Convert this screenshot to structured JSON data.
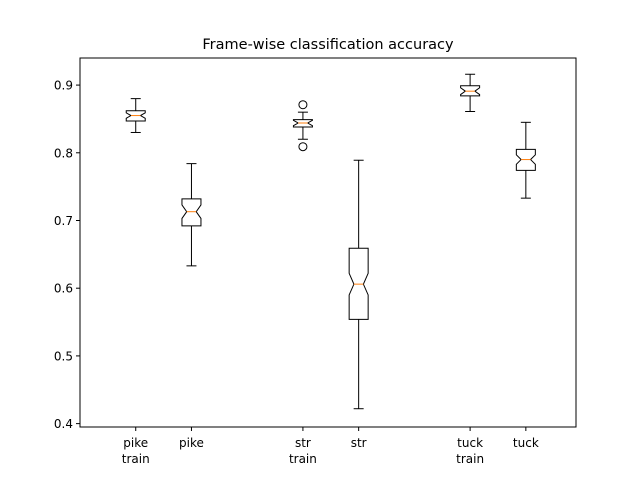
{
  "chart_data": {
    "type": "boxplot",
    "title": "Frame-wise classification accuracy",
    "xlabel": "",
    "ylabel": "",
    "ylim": [
      0.395,
      0.94
    ],
    "yticks": [
      0.4,
      0.5,
      0.6,
      0.7,
      0.8,
      0.9
    ],
    "ytick_labels": [
      "0.4",
      "0.5",
      "0.6",
      "0.7",
      "0.8",
      "0.9"
    ],
    "x_positions": [
      1,
      2,
      4,
      5,
      7,
      8
    ],
    "xlim": [
      0.0,
      8.9
    ],
    "grid": false,
    "notched": true,
    "box_color": "#000000",
    "median_color": "#ff7f0e",
    "boxes": [
      {
        "label_lines": [
          "pike",
          "train"
        ],
        "whisker_low": 0.83,
        "q1": 0.847,
        "median": 0.855,
        "q3": 0.862,
        "whisker_high": 0.88,
        "notch_low": 0.851,
        "notch_high": 0.859,
        "fliers": []
      },
      {
        "label_lines": [
          "pike"
        ],
        "whisker_low": 0.633,
        "q1": 0.692,
        "median": 0.713,
        "q3": 0.732,
        "whisker_high": 0.784,
        "notch_low": 0.703,
        "notch_high": 0.723,
        "fliers": []
      },
      {
        "label_lines": [
          "str",
          "train"
        ],
        "whisker_low": 0.82,
        "q1": 0.838,
        "median": 0.844,
        "q3": 0.849,
        "whisker_high": 0.86,
        "notch_low": 0.84,
        "notch_high": 0.848,
        "fliers": [
          0.871,
          0.809
        ]
      },
      {
        "label_lines": [
          "str"
        ],
        "whisker_low": 0.422,
        "q1": 0.554,
        "median": 0.606,
        "q3": 0.659,
        "whisker_high": 0.789,
        "notch_low": 0.59,
        "notch_high": 0.622,
        "fliers": []
      },
      {
        "label_lines": [
          "tuck",
          "train"
        ],
        "whisker_low": 0.861,
        "q1": 0.884,
        "median": 0.891,
        "q3": 0.899,
        "whisker_high": 0.916,
        "notch_low": 0.886,
        "notch_high": 0.896,
        "fliers": []
      },
      {
        "label_lines": [
          "tuck"
        ],
        "whisker_low": 0.733,
        "q1": 0.774,
        "median": 0.79,
        "q3": 0.805,
        "whisker_high": 0.845,
        "notch_low": 0.783,
        "notch_high": 0.797,
        "fliers": []
      }
    ]
  }
}
